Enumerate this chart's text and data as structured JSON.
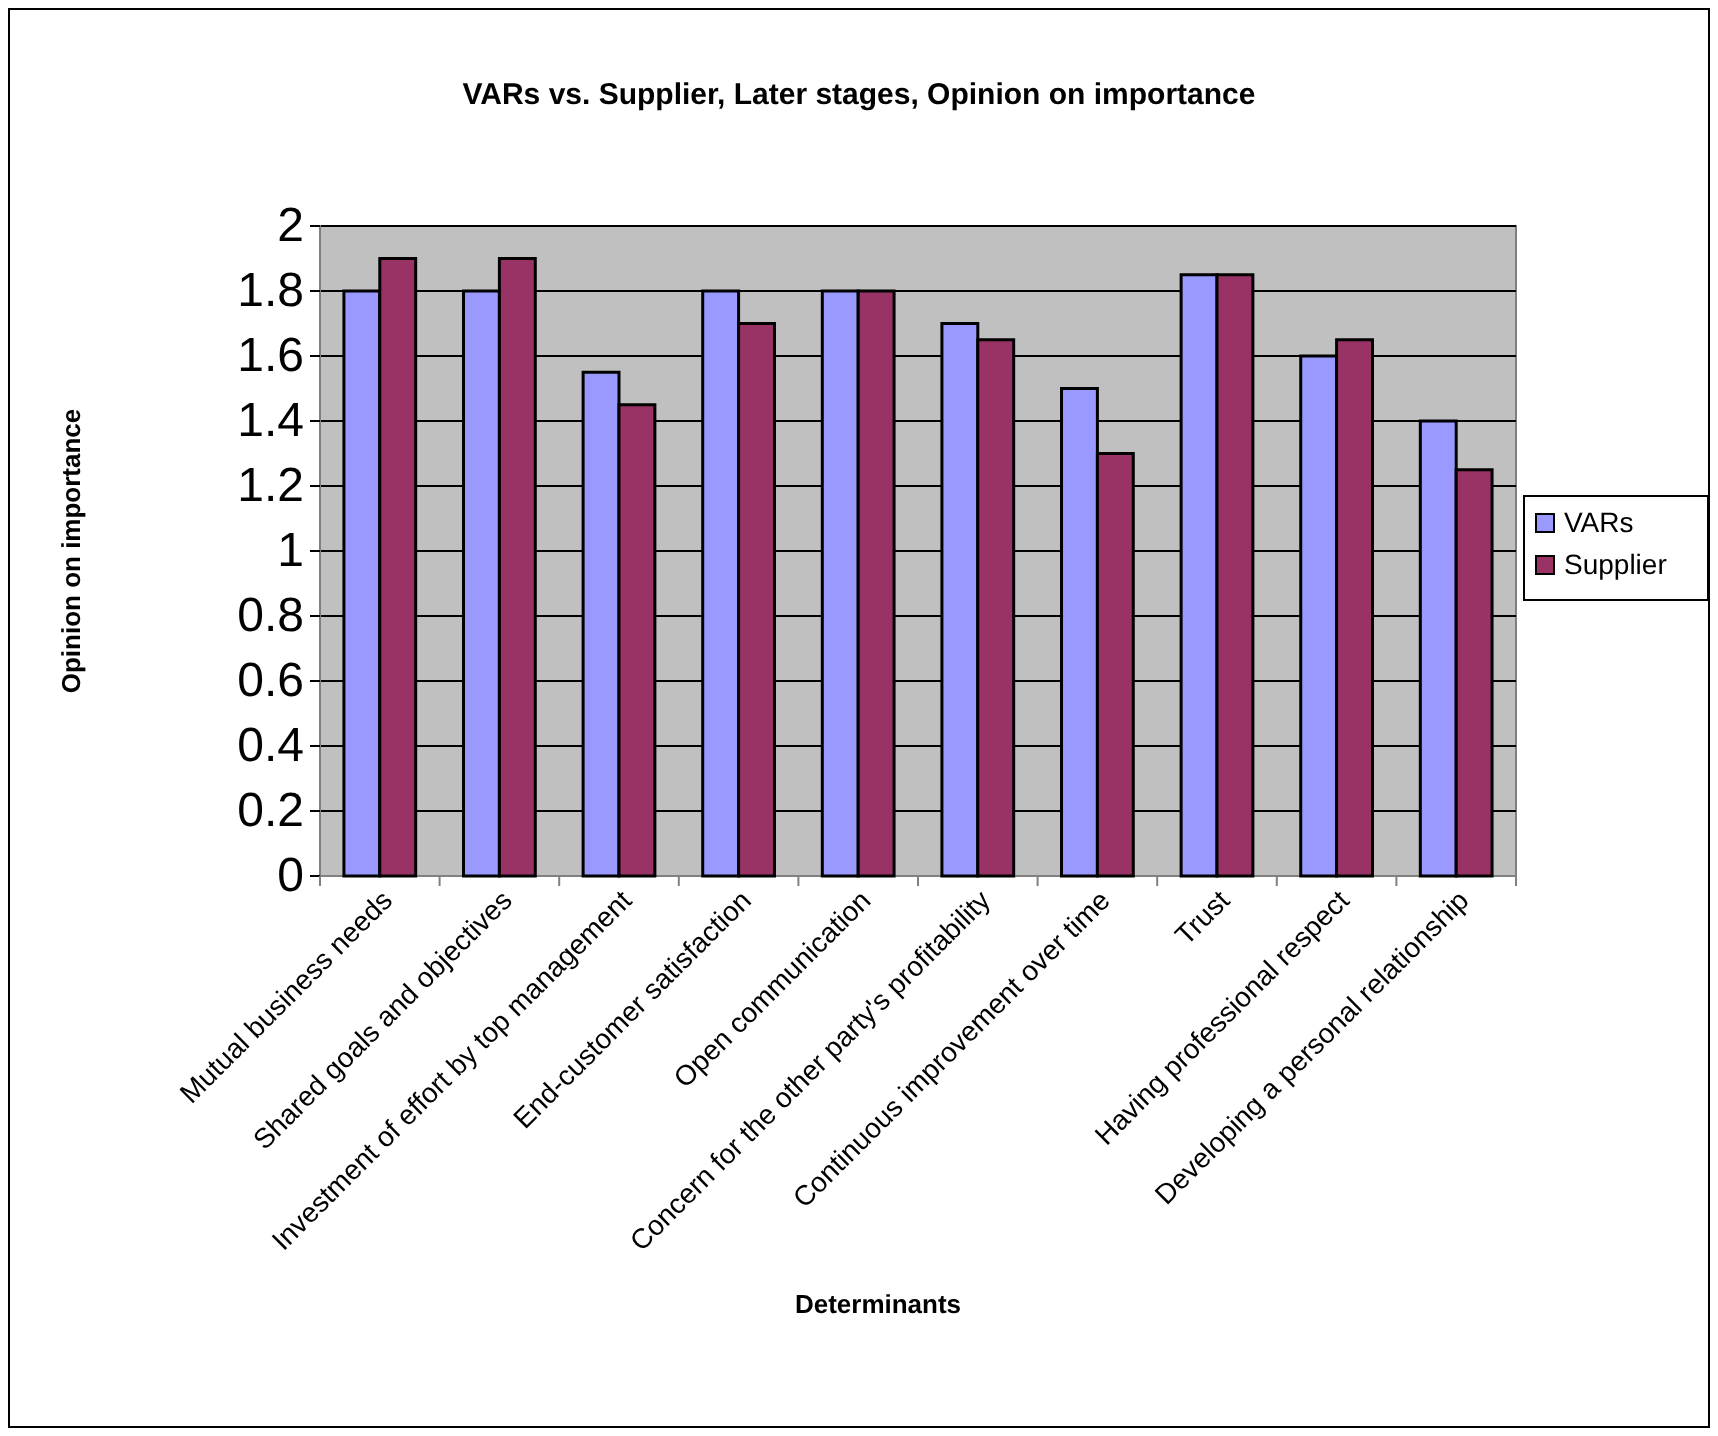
{
  "chart_data": {
    "type": "bar",
    "title": "VARs vs. Supplier, Later stages, Opinion on importance",
    "xlabel": "Determinants",
    "ylabel": "Opinion on importance",
    "categories": [
      "Mutual business needs",
      "Shared goals and objectives",
      "Investment of effort by top management",
      "End-customer satisfaction",
      "Open communication",
      "Concern for the other party's profitability",
      "Continuous improvement over time",
      "Trust",
      "Having professional respect",
      "Developing a personal relationship"
    ],
    "series": [
      {
        "name": "VARs",
        "color": "#9999ff",
        "values": [
          1.8,
          1.8,
          1.55,
          1.8,
          1.8,
          1.7,
          1.5,
          1.85,
          1.6,
          1.4
        ]
      },
      {
        "name": "Supplier",
        "color": "#993366",
        "values": [
          1.9,
          1.9,
          1.45,
          1.7,
          1.8,
          1.65,
          1.3,
          1.85,
          1.65,
          1.25
        ]
      }
    ],
    "ylim": [
      0,
      2
    ],
    "yticks": [
      0,
      0.2,
      0.4,
      0.6,
      0.8,
      1,
      1.2,
      1.4,
      1.6,
      1.8,
      2
    ],
    "grid": "y",
    "legend": "right"
  }
}
